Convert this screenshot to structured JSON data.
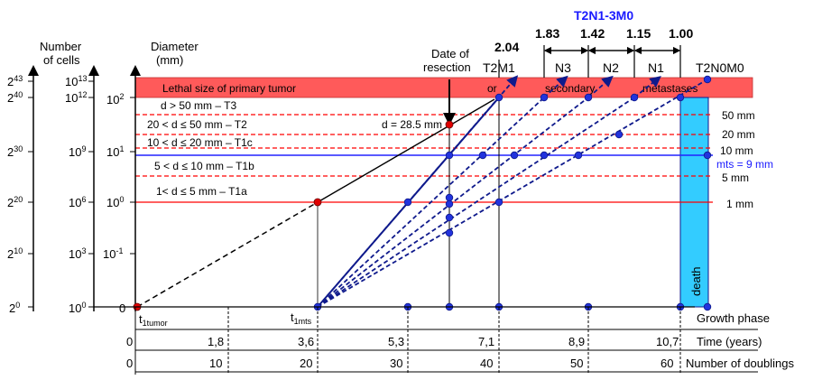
{
  "colors": {
    "lethal_band": "#ff5a5a",
    "dashed_red": "#ff0000",
    "mts_line": "#2222ff",
    "navy": "#0f1a8c",
    "death_bar": "#33ccff",
    "blue_label": "#1a1aff",
    "red_point": "#e00000"
  },
  "headers": {
    "cells_label_line1": "Number",
    "cells_label_line2": "of cells",
    "diameter_label_line1": "Diameter",
    "diameter_label_line2": "(mm)",
    "resection_line1": "Date of",
    "resection_line2": "resection",
    "stage_group_label": "T2N1-3M0"
  },
  "axis_powers2": [
    {
      "base": "2",
      "exp": "43"
    },
    {
      "base": "2",
      "exp": "40"
    },
    {
      "base": "2",
      "exp": "30"
    },
    {
      "base": "2",
      "exp": "20"
    },
    {
      "base": "2",
      "exp": "10"
    },
    {
      "base": "2",
      "exp": "0"
    }
  ],
  "axis_powers10": [
    {
      "base": "10",
      "exp": "13"
    },
    {
      "base": "10",
      "exp": "12"
    },
    {
      "base": "10",
      "exp": "9"
    },
    {
      "base": "10",
      "exp": "6"
    },
    {
      "base": "10",
      "exp": "3"
    },
    {
      "base": "10",
      "exp": "0"
    }
  ],
  "axis_diameter": [
    {
      "base": "10",
      "exp": "2"
    },
    {
      "base": "10",
      "exp": "1"
    },
    {
      "base": "10",
      "exp": "0"
    },
    {
      "base": "10",
      "exp": "-1"
    },
    {
      "base": "",
      "exp": "",
      "plain": "0"
    }
  ],
  "stage_values": [
    "2.04",
    "1.83",
    "1.42",
    "1.15",
    "1.00"
  ],
  "stage_names": [
    "T2M1",
    "N3",
    "N2",
    "N1",
    "T2N0M0"
  ],
  "band_texts": {
    "lethal": "Lethal size of primary tumor",
    "or": "or",
    "secondary": "secondary",
    "metastases": "metastases"
  },
  "size_classes": [
    "d > 50 mm – T3",
    "20 < d ≤ 50 mm – T2",
    "10 < d ≤ 20 mm – T1c",
    "5 < d ≤ 10 mm – T1b",
    "1< d ≤ 5 mm   – T1a"
  ],
  "d_annotation": "d = 28.5 mm",
  "right_sizes": [
    "50 mm",
    "20 mm",
    "10 mm",
    "mts = 9 mm",
    "5 mm",
    "1 mm"
  ],
  "death_label": "death",
  "origin_labels": [
    {
      "main": "t",
      "sub": "1tumor"
    },
    {
      "main": "t",
      "sub": "1mts"
    }
  ],
  "rows": {
    "growth_phase": "Growth phase",
    "time_label": "Time (years)",
    "time_values": [
      "0",
      "1,8",
      "3,6",
      "5,3",
      "7,1",
      "8,9",
      "10,7"
    ],
    "doublings_label": "Number of doublings",
    "doubling_values": [
      "0",
      "10",
      "20",
      "30",
      "40",
      "50",
      "60"
    ]
  }
}
